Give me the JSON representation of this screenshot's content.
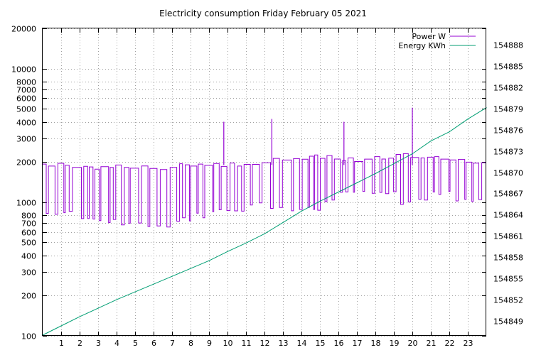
{
  "chart_data": {
    "type": "line",
    "title": "Electricity consumption Friday February 05 2021",
    "xlabel": "",
    "x_ticks": [
      "1",
      "2",
      "3",
      "4",
      "5",
      "6",
      "7",
      "8",
      "9",
      "10",
      "11",
      "12",
      "13",
      "14",
      "15",
      "16",
      "17",
      "18",
      "19",
      "20",
      "21",
      "22",
      "23"
    ],
    "xlim": [
      0,
      24
    ],
    "y_left": {
      "scale": "log",
      "ylim": [
        100,
        20000
      ],
      "ticks": [
        100,
        200,
        300,
        400,
        500,
        600,
        700,
        800,
        1000,
        2000,
        3000,
        4000,
        5000,
        6000,
        7000,
        8000,
        10000,
        20000
      ]
    },
    "y_right": {
      "scale": "linear",
      "ylim": [
        154846.9,
        154890.3
      ],
      "ticks": [
        154849,
        154852,
        154855,
        154858,
        154861,
        154864,
        154867,
        154870,
        154873,
        154876,
        154879,
        154882,
        154885,
        154888
      ]
    },
    "grid": true,
    "legend_position": "top-right",
    "series": [
      {
        "name": "Power W",
        "axis": "left",
        "color": "#9400d3",
        "x": [
          0,
          0.5,
          1,
          1.5,
          2,
          2.5,
          3,
          3.5,
          4,
          4.5,
          5,
          5.5,
          6,
          6.5,
          7,
          7.5,
          8,
          8.5,
          9,
          9.5,
          9.8,
          10,
          10.5,
          11,
          11.5,
          12,
          12.4,
          12.5,
          13,
          13.5,
          14,
          14.5,
          15,
          15.5,
          16,
          16.3,
          16.5,
          17,
          17.5,
          18,
          18.5,
          19,
          19.5,
          20,
          20.5,
          21,
          21.5,
          22,
          22.5,
          23,
          23.5,
          24
        ],
        "y": [
          1300,
          1150,
          1200,
          1000,
          1100,
          900,
          1000,
          900,
          1000,
          900,
          1000,
          900,
          1100,
          1000,
          1100,
          1000,
          1150,
          1150,
          1250,
          1200,
          4000,
          1250,
          1300,
          1300,
          1300,
          1400,
          4200,
          1500,
          1600,
          1550,
          1700,
          1650,
          1600,
          1550,
          1700,
          4000,
          1650,
          1650,
          1550,
          1600,
          1650,
          1650,
          1600,
          5100,
          1650,
          1600,
          1650,
          1600,
          1650,
          1400,
          1400,
          1450
        ],
        "switching": {
          "low_level": [
            830,
            820,
            760,
            730,
            680,
            670,
            680,
            750,
            800,
            880,
            900,
            950,
            900,
            850,
            900,
            1000,
            1200,
            1200,
            1150,
            1000,
            1050,
            1200,
            1050,
            1000
          ],
          "high_level": [
            1950,
            1900,
            1850,
            1850,
            1850,
            1850,
            1850,
            1900,
            1950,
            1950,
            1950,
            2000,
            2100,
            2100,
            2200,
            2200,
            2100,
            2150,
            2200,
            2250,
            2150,
            2150,
            2100,
            2050
          ]
        }
      },
      {
        "name": "Energy KWh",
        "axis": "right",
        "color": "#009e73",
        "x": [
          0,
          1,
          2,
          3,
          4,
          5,
          6,
          7,
          8,
          9,
          10,
          11,
          12,
          13,
          14,
          15,
          16,
          17,
          18,
          19,
          20,
          21,
          22,
          23,
          24
        ],
        "y": [
          154847.0,
          154848.3,
          154849.6,
          154850.8,
          154852.0,
          154853.1,
          154854.2,
          154855.3,
          154856.4,
          154857.5,
          154858.8,
          154860.0,
          154861.3,
          154862.9,
          154864.5,
          154865.9,
          154867.2,
          154868.5,
          154869.8,
          154871.2,
          154872.6,
          154874.4,
          154875.7,
          154877.5,
          154879.1
        ]
      }
    ]
  }
}
